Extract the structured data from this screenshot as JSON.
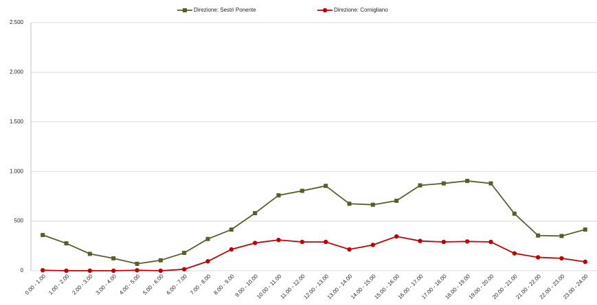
{
  "chart_data": {
    "type": "line",
    "categories": [
      "0.00 - 1.00",
      "1.00 - 2.00",
      "2.00 - 3.00",
      "3.00 - 4.00",
      "4.00 - 5.00",
      "5.00 - 6.00",
      "6.00 - 7.00",
      "7.00 - 8.00",
      "8.00 - 9.00",
      "9.00 - 10.00",
      "10.00 - 11.00",
      "11.00 - 12.00",
      "12.00 - 13.00",
      "13.00 - 14.00",
      "14.00 - 15.00",
      "15.00 - 16.00",
      "16.00 - 17.00",
      "17.00 - 18.00",
      "18.00 - 19.00",
      "19.00 - 20.00",
      "20.00 - 21.00",
      "21.00 - 22.00",
      "22.00 - 23.00",
      "23.00 - 24.00"
    ],
    "series": [
      {
        "name": "Direzione: Sestri Ponente",
        "color": "#4f6228",
        "marker": "square",
        "values": [
          360,
          276,
          170,
          125,
          70,
          105,
          180,
          320,
          415,
          580,
          760,
          805,
          855,
          675,
          665,
          705,
          860,
          880,
          905,
          880,
          575,
          355,
          350,
          415
        ]
      },
      {
        "name": "Direzione: Cornigliano",
        "color": "#c00000",
        "marker": "circle",
        "values": [
          5,
          0,
          0,
          0,
          5,
          0,
          15,
          95,
          215,
          280,
          310,
          290,
          290,
          215,
          260,
          345,
          300,
          290,
          295,
          290,
          175,
          135,
          125,
          90
        ]
      }
    ],
    "ylim": [
      0,
      2500
    ],
    "yticks": [
      0,
      500,
      {
        "value": 1000,
        "label": "1.000"
      },
      {
        "value": 1500,
        "label": "1.500"
      },
      {
        "value": 2000,
        "label": "2.000"
      },
      {
        "value": 2500,
        "label": "2.500"
      }
    ],
    "grid": true,
    "legend": "top"
  }
}
